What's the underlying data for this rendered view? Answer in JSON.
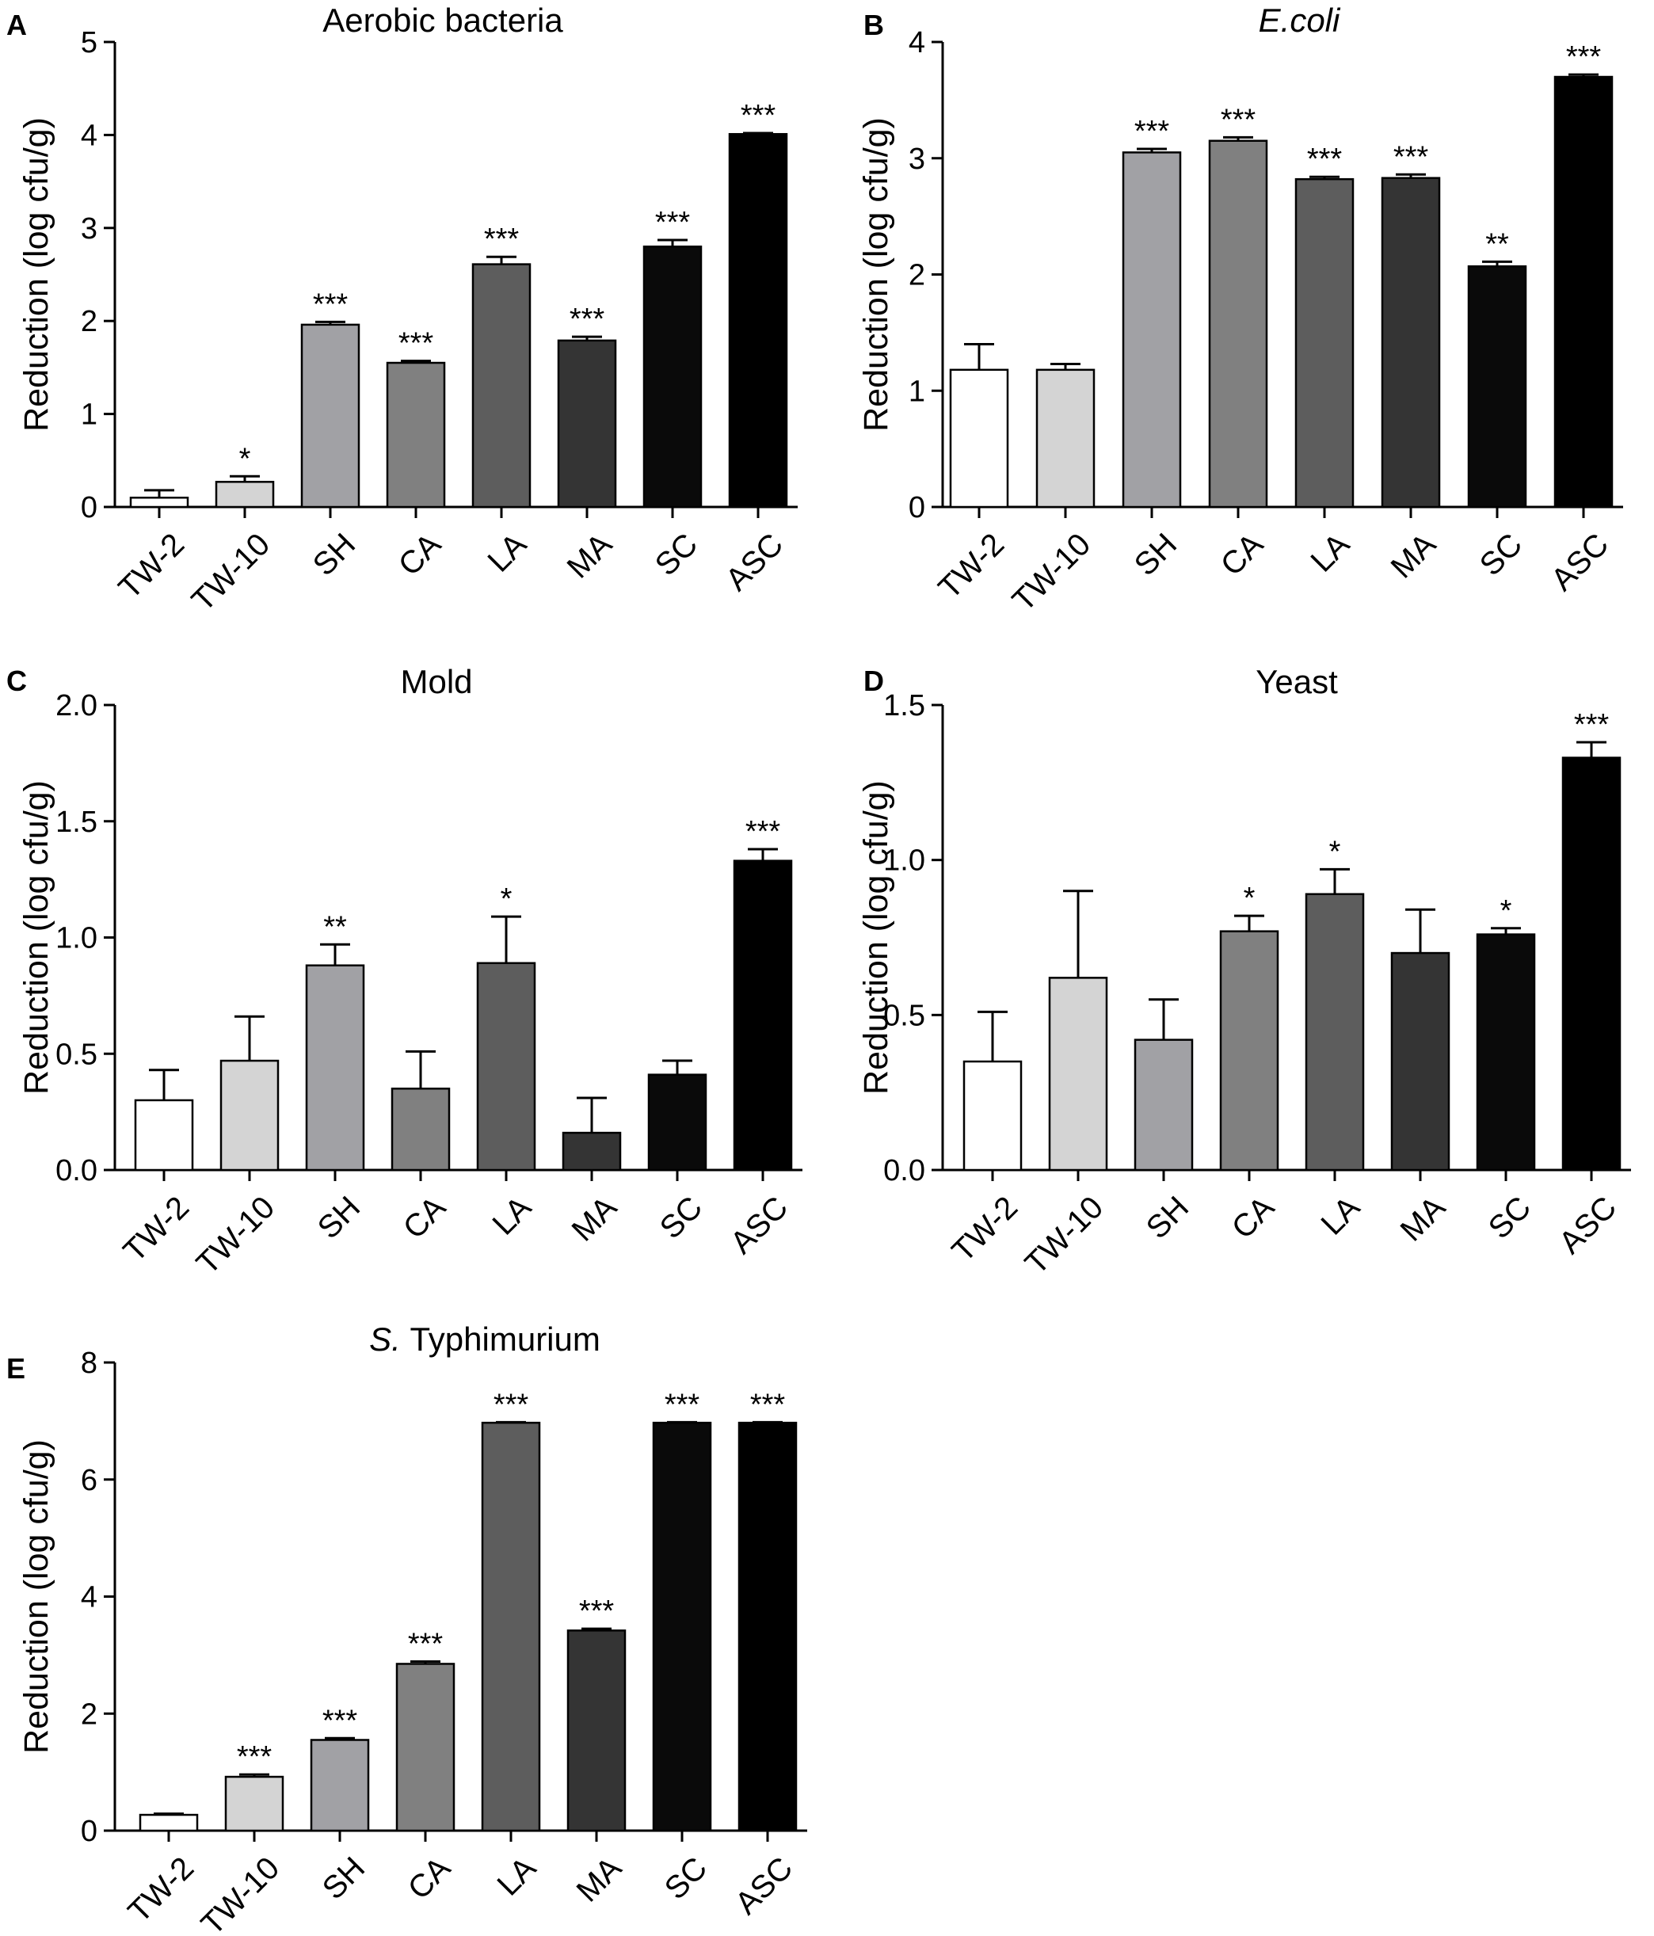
{
  "figure": {
    "categories": [
      "TW-2",
      "TW-10",
      "SH",
      "CA",
      "LA",
      "MA",
      "SC",
      "ASC"
    ],
    "bar_colors": [
      "#ffffff",
      "#d4d4d4",
      "#a1a1a5",
      "#808080",
      "#5d5d5d",
      "#343434",
      "#0a0a0a",
      "#000000"
    ]
  },
  "chart_data": [
    {
      "panel": "A",
      "type": "bar",
      "title": "Aerobic bacteria",
      "title_italic": false,
      "ylabel": "Reduction (log cfu/g)",
      "ylim": [
        0,
        5
      ],
      "yticks": [
        0,
        1,
        2,
        3,
        4,
        5
      ],
      "categories": [
        "TW-2",
        "TW-10",
        "SH",
        "CA",
        "LA",
        "MA",
        "SC",
        "ASC"
      ],
      "values": [
        0.1,
        0.27,
        1.96,
        1.55,
        2.61,
        1.79,
        2.8,
        4.01
      ],
      "errors": [
        0.08,
        0.06,
        0.03,
        0.02,
        0.08,
        0.04,
        0.07,
        0.01
      ],
      "significance": [
        "",
        "*",
        "***",
        "***",
        "***",
        "***",
        "***",
        "***"
      ]
    },
    {
      "panel": "B",
      "type": "bar",
      "title": "E.coli",
      "title_italic": true,
      "ylabel": "Reduction (log cfu/g)",
      "ylim": [
        0,
        4
      ],
      "yticks": [
        0,
        1,
        2,
        3,
        4
      ],
      "categories": [
        "TW-2",
        "TW-10",
        "SH",
        "CA",
        "LA",
        "MA",
        "SC",
        "ASC"
      ],
      "values": [
        1.18,
        1.18,
        3.05,
        3.15,
        2.82,
        2.83,
        2.07,
        3.7
      ],
      "errors": [
        0.22,
        0.05,
        0.03,
        0.03,
        0.02,
        0.03,
        0.04,
        0.02
      ],
      "significance": [
        "",
        "",
        "***",
        "***",
        "***",
        "***",
        "**",
        "***"
      ]
    },
    {
      "panel": "C",
      "type": "bar",
      "title": "Mold",
      "title_italic": false,
      "ylabel": "Reduction (log cfu/g)",
      "ylim": [
        0,
        2.0
      ],
      "yticks": [
        "0.0",
        "0.5",
        "1.0",
        "1.5",
        "2.0"
      ],
      "categories": [
        "TW-2",
        "TW-10",
        "SH",
        "CA",
        "LA",
        "MA",
        "SC",
        "ASC"
      ],
      "values": [
        0.3,
        0.47,
        0.88,
        0.35,
        0.89,
        0.16,
        0.41,
        1.33
      ],
      "errors": [
        0.13,
        0.19,
        0.09,
        0.16,
        0.2,
        0.15,
        0.06,
        0.05
      ],
      "significance": [
        "",
        "",
        "**",
        "",
        "*",
        "",
        "",
        "***"
      ]
    },
    {
      "panel": "D",
      "type": "bar",
      "title": "Yeast",
      "title_italic": false,
      "ylabel": "Reduction (log cfu/g)",
      "ylim": [
        0,
        1.5
      ],
      "yticks": [
        "0.0",
        "0.5",
        "1.0",
        "1.5"
      ],
      "categories": [
        "TW-2",
        "TW-10",
        "SH",
        "CA",
        "LA",
        "MA",
        "SC",
        "ASC"
      ],
      "values": [
        0.35,
        0.62,
        0.42,
        0.77,
        0.89,
        0.7,
        0.76,
        1.33
      ],
      "errors": [
        0.16,
        0.28,
        0.13,
        0.05,
        0.08,
        0.14,
        0.02,
        0.05
      ],
      "significance": [
        "",
        "",
        "",
        "*",
        "*",
        "",
        "*",
        "***"
      ]
    },
    {
      "panel": "E",
      "type": "bar",
      "title": "Typhimurium",
      "title_prefix_italic": "S.",
      "title_italic": false,
      "ylabel": "Reduction (log cfu/g)",
      "ylim": [
        0,
        8
      ],
      "yticks": [
        0,
        2,
        4,
        6,
        8
      ],
      "categories": [
        "TW-2",
        "TW-10",
        "SH",
        "CA",
        "LA",
        "MA",
        "SC",
        "ASC"
      ],
      "values": [
        0.27,
        0.92,
        1.55,
        2.85,
        6.97,
        3.42,
        6.97,
        6.97
      ],
      "errors": [
        0.02,
        0.04,
        0.03,
        0.04,
        0.01,
        0.03,
        0.01,
        0.01
      ],
      "significance": [
        "",
        "***",
        "***",
        "***",
        "***",
        "***",
        "***",
        "***"
      ]
    }
  ]
}
